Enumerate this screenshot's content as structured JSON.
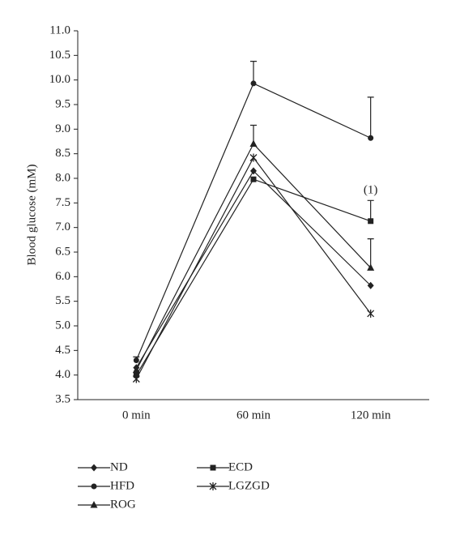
{
  "chart_data": {
    "type": "line",
    "y_label": "Blood glucose (mM)",
    "categories": [
      "0 min",
      "60 min",
      "120 min"
    ],
    "series": [
      {
        "name": "ND",
        "color": "#222222",
        "marker": "diamond",
        "values": [
          4.15,
          8.15,
          5.82
        ],
        "errors": [
          null,
          null,
          null
        ]
      },
      {
        "name": "HFD",
        "color": "#222222",
        "marker": "circle",
        "values": [
          4.3,
          9.93,
          8.82
        ],
        "errors": [
          0.07,
          0.45,
          0.83
        ]
      },
      {
        "name": "ROG",
        "color": "#222222",
        "marker": "triangle",
        "values": [
          4.1,
          8.7,
          6.18
        ],
        "errors": [
          null,
          0.38,
          0.59
        ]
      },
      {
        "name": "ECD",
        "color": "#222222",
        "marker": "square",
        "values": [
          4.0,
          7.98,
          7.13
        ],
        "errors": [
          null,
          null,
          0.42
        ]
      },
      {
        "name": "LGZGD",
        "color": "#222222",
        "marker": "cross",
        "values": [
          3.92,
          8.42,
          5.25
        ],
        "errors": [
          null,
          null,
          null
        ]
      }
    ],
    "annotations": [
      {
        "text": "(1)"
      }
    ],
    "ylim": [
      3.5,
      11.0
    ],
    "yticks": [
      3.5,
      {
        "value": 4,
        "label": "4.0"
      },
      4.5,
      {
        "value": 5,
        "label": "5.0"
      },
      5.5,
      {
        "value": 6,
        "label": "6.0"
      },
      6.5,
      {
        "value": 7,
        "label": "7.0"
      },
      7.5,
      {
        "value": 8,
        "label": "8.0"
      },
      8.5,
      {
        "value": 9,
        "label": "9.0"
      },
      9.5,
      {
        "value": 10,
        "label": "10.0"
      },
      10.5,
      {
        "value": 11,
        "label": "11.0"
      }
    ],
    "grid": false
  }
}
